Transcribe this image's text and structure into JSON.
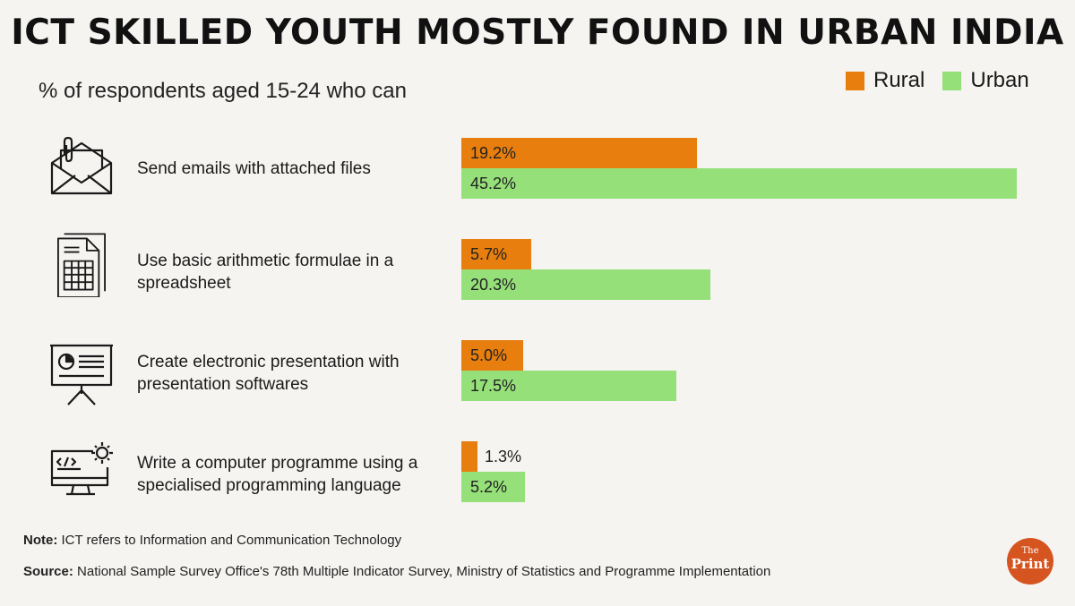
{
  "title": "ICT SKILLED YOUTH MOSTLY FOUND IN URBAN INDIA",
  "subtitle": "% of respondents aged 15-24 who can",
  "legend": [
    {
      "label": "Rural",
      "color": "#e77e0d"
    },
    {
      "label": "Urban",
      "color": "#96e07a"
    }
  ],
  "chart_data": {
    "type": "bar",
    "orientation": "horizontal",
    "title": "ICT SKILLED YOUTH MOSTLY FOUND IN URBAN INDIA",
    "subtitle": "% of respondents aged 15-24 who can",
    "categories": [
      "Send emails with attached files",
      "Use basic arithmetic formulae in a spreadsheet",
      "Create electronic presentation with presentation softwares",
      "Write a computer programme using a specialised programming language"
    ],
    "series": [
      {
        "name": "Rural",
        "values": [
          19.2,
          5.7,
          5.0,
          1.3
        ],
        "labels": [
          "19.2%",
          "5.7%",
          "5.0%",
          "1.3%"
        ],
        "color": "#e77e0d"
      },
      {
        "name": "Urban",
        "values": [
          45.2,
          20.3,
          17.5,
          5.2
        ],
        "labels": [
          "45.2%",
          "20.3%",
          "17.5%",
          "5.2%"
        ],
        "color": "#96e07a"
      }
    ],
    "xlim": [
      0,
      45.2
    ],
    "grid": false,
    "legend_position": "top-right"
  },
  "rows": [
    {
      "label": "Send emails with attached files",
      "icon": "email-attachment-icon"
    },
    {
      "label": "Use basic arithmetic formulae in a spreadsheet",
      "icon": "spreadsheet-icon"
    },
    {
      "label": "Create electronic presentation with presentation softwares",
      "icon": "presentation-board-icon"
    },
    {
      "label": "Write a computer programme using a specialised programming language",
      "icon": "code-monitor-icon"
    }
  ],
  "note": {
    "prefix": "Note:",
    "text": "ICT refers to Information and Communication Technology"
  },
  "source": {
    "prefix": "Source:",
    "text": "National Sample Survey Office's 78th Multiple Indicator Survey, Ministry of Statistics and Programme Implementation"
  },
  "logo": {
    "top": "The",
    "bottom": "Print"
  }
}
